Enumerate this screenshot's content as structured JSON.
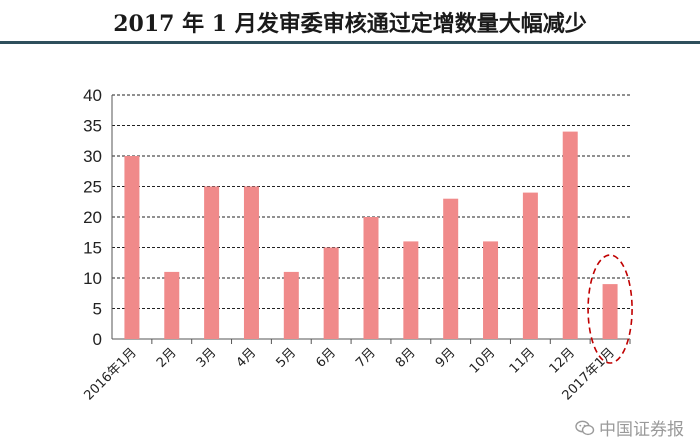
{
  "page": {
    "title": "2017 年 1 月发审委审核通过定增数量大幅减少",
    "watermark": "中国证券报",
    "watermark_icon": "wechat-icon"
  },
  "colors": {
    "bar": "#f08a8a",
    "grid": "#222222",
    "title_rule": "#2f4f5c",
    "highlight_ellipse": "#c00000"
  },
  "chart_data": {
    "type": "bar",
    "title": "2017 年 1 月发审委审核通过定增数量大幅减少",
    "xlabel": "",
    "ylabel": "",
    "categories": [
      "2016年1月",
      "2月",
      "3月",
      "4月",
      "5月",
      "6月",
      "7月",
      "8月",
      "9月",
      "10月",
      "11月",
      "12月",
      "2017年1月"
    ],
    "values": [
      30,
      11,
      25,
      25,
      11,
      15,
      20,
      16,
      23,
      16,
      24,
      34,
      9
    ],
    "ylim": [
      0,
      40
    ],
    "yticks": [
      0,
      5,
      10,
      15,
      20,
      25,
      30,
      35,
      40
    ],
    "grid": true,
    "grid_style": "dashed",
    "highlight": "2017年1月",
    "legend": "none"
  }
}
